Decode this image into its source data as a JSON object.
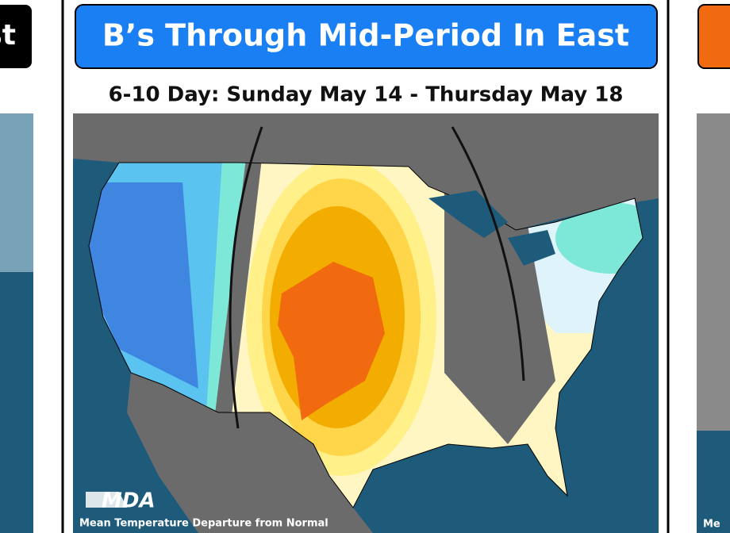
{
  "header": {
    "title": "B’s Through Mid-Period In East",
    "subtitle": "6-10 Day: Sunday May 14 - Thursday May 18"
  },
  "map": {
    "logo": "MDA",
    "caption": "Mean Temperature Departure from Normal"
  },
  "left_panel": {
    "title_fragment": "st"
  },
  "right_panel": {
    "caption_fragment": "Me"
  }
}
